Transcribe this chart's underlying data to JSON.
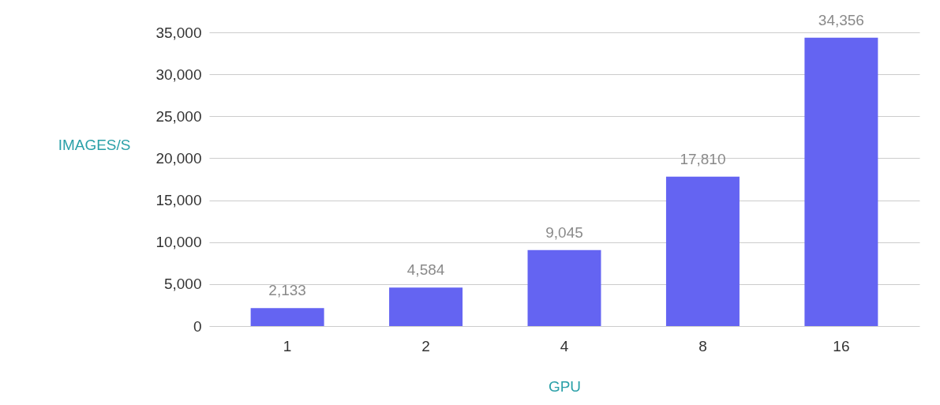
{
  "chart_data": {
    "type": "bar",
    "xlabel": "GPU",
    "ylabel": "IMAGES/S",
    "categories": [
      "1",
      "2",
      "4",
      "8",
      "16"
    ],
    "values": [
      2133,
      4584,
      9045,
      17810,
      34356
    ],
    "value_labels": [
      "2,133",
      "4,584",
      "9,045",
      "17,810",
      "34,356"
    ],
    "color": "#6464f2",
    "ylim": [
      0,
      35000
    ],
    "yticks": [
      {
        "value": 0,
        "label": "0"
      },
      {
        "value": 5000,
        "label": "5,000"
      },
      {
        "value": 10000,
        "label": "10,000"
      },
      {
        "value": 15000,
        "label": "15,000"
      },
      {
        "value": 20000,
        "label": "20,000"
      },
      {
        "value": 25000,
        "label": "25,000"
      },
      {
        "value": 30000,
        "label": "30,000"
      },
      {
        "value": 35000,
        "label": "35,000"
      }
    ],
    "grid": "y"
  }
}
